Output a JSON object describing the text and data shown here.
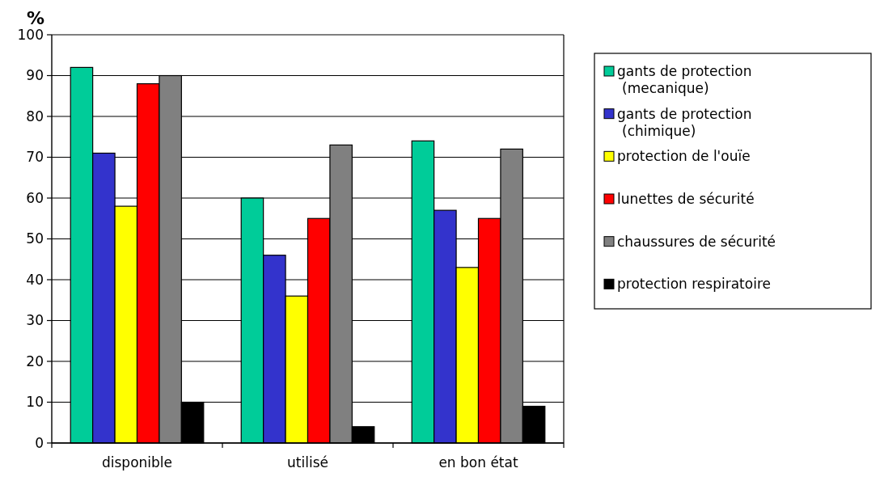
{
  "chart_data": {
    "type": "bar",
    "ylabel": "%",
    "categories": [
      "disponible",
      "utilisé",
      "en bon état"
    ],
    "series": [
      {
        "name": "gants de protection (mecanique)",
        "color": "#00cc99",
        "values": [
          92,
          60,
          74
        ]
      },
      {
        "name": "gants de protection (chimique)",
        "color": "#3333cc",
        "values": [
          71,
          46,
          57
        ]
      },
      {
        "name": "protection de l'ouïe",
        "color": "#ffff00",
        "values": [
          58,
          36,
          43
        ]
      },
      {
        "name": "lunettes de sécurité",
        "color": "#ff0000",
        "values": [
          88,
          55,
          55
        ]
      },
      {
        "name": "chaussures de sécurité",
        "color": "#808080",
        "values": [
          90,
          73,
          72
        ]
      },
      {
        "name": "protection respiratoire",
        "color": "#000000",
        "values": [
          10,
          4,
          9
        ]
      }
    ],
    "ylim": [
      0,
      100
    ],
    "yticks": [
      0,
      10,
      20,
      30,
      40,
      50,
      60,
      70,
      80,
      90,
      100
    ],
    "grid": "y",
    "legend": "right"
  }
}
